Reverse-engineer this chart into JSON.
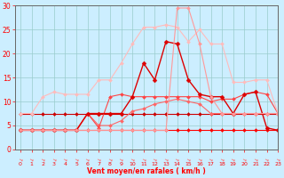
{
  "xlabel": "Vent moyen/en rafales ( km/h )",
  "x": [
    0,
    1,
    2,
    3,
    4,
    5,
    6,
    7,
    8,
    9,
    10,
    11,
    12,
    13,
    14,
    15,
    16,
    17,
    18,
    19,
    20,
    21,
    22,
    23
  ],
  "series": [
    {
      "color": "#ff0000",
      "linewidth": 0.8,
      "marker": "D",
      "markersize": 2,
      "y": [
        4,
        4,
        4,
        4,
        4,
        4,
        4,
        4,
        4,
        4,
        4,
        4,
        4,
        4,
        4,
        4,
        4,
        4,
        4,
        4,
        4,
        4,
        4,
        4
      ]
    },
    {
      "color": "#cc0000",
      "linewidth": 0.8,
      "marker": "D",
      "markersize": 2,
      "y": [
        7.5,
        7.5,
        7.5,
        7.5,
        7.5,
        7.5,
        7.5,
        7.5,
        7.5,
        7.5,
        7.5,
        7.5,
        7.5,
        7.5,
        7.5,
        7.5,
        7.5,
        7.5,
        7.5,
        7.5,
        7.5,
        7.5,
        7.5,
        7.5
      ]
    },
    {
      "color": "#ff6666",
      "linewidth": 0.8,
      "marker": "D",
      "markersize": 2,
      "y": [
        4,
        4,
        4,
        4,
        4,
        4,
        7.5,
        5,
        5,
        6,
        8,
        8.5,
        9.5,
        10,
        10.5,
        10,
        9.5,
        7.5,
        7.5,
        7.5,
        7.5,
        7.5,
        7.5,
        7.5
      ]
    },
    {
      "color": "#ff4444",
      "linewidth": 0.8,
      "marker": "D",
      "markersize": 2,
      "y": [
        4,
        4,
        4,
        4,
        4,
        4,
        7.5,
        4.5,
        11,
        11.5,
        11,
        11,
        11,
        11,
        11,
        11,
        11,
        10,
        10.5,
        10.5,
        11.5,
        12,
        11.5,
        7.5
      ]
    },
    {
      "color": "#dd0000",
      "linewidth": 1.0,
      "marker": "D",
      "markersize": 2.5,
      "y": [
        4,
        4,
        4,
        4,
        4,
        4,
        7.5,
        7.5,
        7.5,
        7.5,
        11,
        18,
        14.5,
        22.5,
        22,
        14.5,
        11.5,
        11,
        11,
        7.5,
        11.5,
        12,
        4.5,
        4
      ]
    },
    {
      "color": "#ffbbbb",
      "linewidth": 0.8,
      "marker": "D",
      "markersize": 2,
      "y": [
        7.5,
        7.5,
        11,
        12,
        11.5,
        11.5,
        11.5,
        14.5,
        14.5,
        18,
        22,
        25.5,
        25.5,
        26,
        25.5,
        22.5,
        25,
        22,
        22,
        14,
        14,
        14.5,
        14.5,
        7.5
      ]
    },
    {
      "color": "#ff9999",
      "linewidth": 0.8,
      "marker": "D",
      "markersize": 2,
      "y": [
        4,
        4,
        4,
        4,
        4,
        4,
        4,
        4,
        4,
        4,
        4,
        4,
        4,
        4,
        29.5,
        29.5,
        22,
        11,
        7.5,
        7.5,
        7.5,
        7.5,
        7.5,
        7.5
      ]
    }
  ],
  "ylim": [
    0,
    30
  ],
  "xlim": [
    -0.5,
    23
  ],
  "yticks": [
    0,
    5,
    10,
    15,
    20,
    25,
    30
  ],
  "xticks": [
    0,
    1,
    2,
    3,
    4,
    5,
    6,
    7,
    8,
    9,
    10,
    11,
    12,
    13,
    14,
    15,
    16,
    17,
    18,
    19,
    20,
    21,
    22,
    23
  ],
  "bg_color": "#cceeff",
  "grid_color": "#99cccc",
  "tick_color": "#ff0000",
  "label_color": "#ff0000",
  "arrow_color": "#ff6666"
}
